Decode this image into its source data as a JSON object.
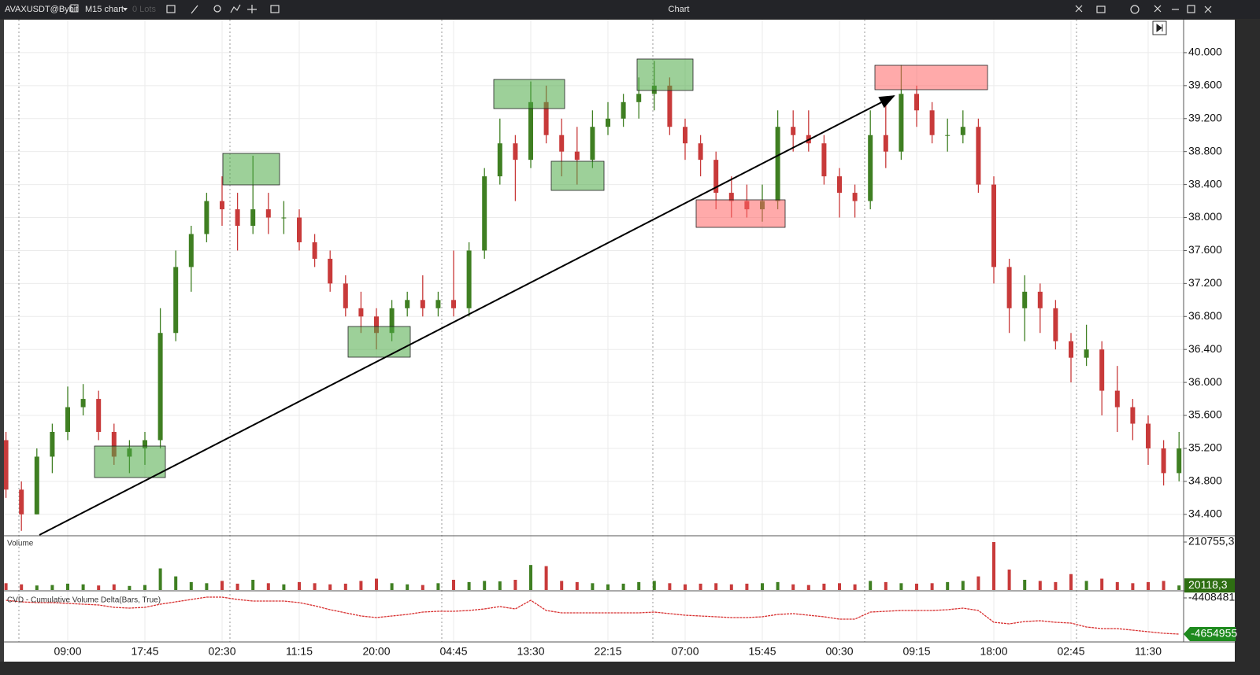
{
  "toolbar": {
    "symbol": "AVAXUSDT@Bybit",
    "timeframe": "M15 chart",
    "lots": "0 Lots",
    "window_title": "Chart"
  },
  "chart_data": [
    {
      "type": "candlestick",
      "categories": [
        null,
        null,
        null,
        null,
        "09:00",
        null,
        null,
        null,
        null,
        "17:45",
        null,
        null,
        null,
        null,
        "02:30",
        null,
        null,
        null,
        null,
        "11:15",
        null,
        null,
        null,
        null,
        "20:00",
        null,
        null,
        null,
        null,
        "04:45",
        null,
        null,
        null,
        null,
        "13:30",
        null,
        null,
        null,
        null,
        "22:15",
        null,
        null,
        null,
        null,
        "07:00",
        null,
        null,
        null,
        null,
        "15:45",
        null,
        null,
        null,
        null,
        "00:30",
        null,
        null,
        null,
        null,
        "09:15",
        null,
        null,
        null,
        null,
        "18:00",
        null,
        null,
        null,
        null,
        "02:45",
        null,
        null,
        null,
        null,
        "11:30",
        null,
        null
      ],
      "open": [
        35.3,
        34.7,
        34.4,
        35.1,
        35.4,
        35.7,
        35.8,
        35.4,
        35.1,
        35.2,
        35.3,
        36.6,
        37.4,
        37.8,
        38.2,
        38.1,
        37.9,
        38.1,
        38.0,
        38.0,
        37.7,
        37.5,
        37.2,
        36.9,
        36.8,
        36.6,
        36.9,
        37.0,
        36.9,
        37.0,
        36.9,
        37.6,
        38.5,
        38.9,
        38.7,
        39.4,
        39.0,
        38.8,
        38.7,
        39.1,
        39.2,
        39.4,
        39.5,
        39.6,
        39.1,
        38.9,
        38.7,
        38.3,
        38.2,
        38.1,
        38.2,
        39.1,
        39.0,
        38.9,
        38.5,
        38.3,
        38.2,
        39.0,
        38.8,
        39.5,
        39.3,
        39.0,
        39.0,
        39.1,
        38.4,
        37.4,
        36.9,
        37.1,
        36.9,
        36.5,
        36.3,
        36.4,
        35.9,
        35.7,
        35.5,
        35.2,
        34.9
      ],
      "high": [
        35.4,
        34.8,
        35.2,
        35.5,
        35.95,
        35.98,
        35.9,
        35.5,
        35.3,
        35.4,
        36.9,
        37.6,
        37.9,
        38.3,
        38.5,
        38.3,
        38.75,
        38.3,
        38.2,
        38.1,
        37.8,
        37.6,
        37.3,
        37.1,
        36.9,
        37.0,
        37.1,
        37.3,
        37.1,
        37.6,
        37.7,
        38.6,
        39.2,
        39.0,
        39.65,
        39.6,
        39.2,
        39.1,
        39.3,
        39.4,
        39.5,
        39.7,
        39.9,
        39.7,
        39.2,
        39.0,
        38.8,
        38.5,
        38.4,
        38.4,
        39.3,
        39.3,
        39.3,
        39.0,
        38.6,
        38.4,
        39.3,
        39.4,
        39.85,
        39.6,
        39.4,
        39.2,
        39.3,
        39.2,
        38.5,
        37.5,
        37.3,
        37.2,
        37.0,
        36.6,
        36.7,
        36.5,
        36.2,
        35.8,
        35.6,
        35.3,
        35.4
      ],
      "low": [
        34.6,
        34.2,
        34.4,
        34.9,
        35.3,
        35.6,
        35.3,
        35.0,
        34.9,
        35.0,
        35.2,
        36.5,
        37.1,
        37.7,
        37.9,
        37.6,
        37.8,
        37.8,
        37.8,
        37.6,
        37.4,
        37.1,
        36.8,
        36.6,
        36.4,
        36.5,
        36.8,
        36.8,
        36.8,
        36.8,
        36.8,
        37.5,
        38.4,
        38.2,
        38.6,
        38.9,
        38.5,
        38.4,
        38.6,
        39.0,
        39.1,
        39.2,
        39.3,
        39.0,
        38.7,
        38.5,
        38.1,
        38.0,
        38.0,
        37.95,
        38.1,
        38.8,
        38.8,
        38.4,
        38.0,
        38.0,
        38.1,
        38.6,
        38.7,
        39.1,
        38.9,
        38.8,
        38.9,
        38.3,
        37.2,
        36.6,
        36.5,
        36.6,
        36.4,
        36.0,
        36.2,
        35.6,
        35.4,
        35.3,
        35.0,
        34.75,
        34.8
      ],
      "close": [
        34.7,
        34.4,
        35.1,
        35.4,
        35.7,
        35.8,
        35.4,
        35.1,
        35.2,
        35.3,
        36.6,
        37.4,
        37.8,
        38.2,
        38.1,
        37.9,
        38.1,
        38.0,
        38.0,
        37.7,
        37.5,
        37.2,
        36.9,
        36.8,
        36.6,
        36.9,
        37.0,
        36.9,
        37.0,
        36.9,
        37.6,
        38.5,
        38.9,
        38.7,
        39.4,
        39.0,
        38.8,
        38.7,
        39.1,
        39.2,
        39.4,
        39.5,
        39.6,
        39.1,
        38.9,
        38.7,
        38.3,
        38.2,
        38.1,
        38.2,
        39.1,
        39.0,
        38.9,
        38.5,
        38.3,
        38.2,
        39.0,
        38.8,
        39.5,
        39.3,
        39.0,
        39.0,
        39.1,
        38.4,
        37.4,
        36.9,
        37.1,
        36.9,
        36.5,
        36.3,
        36.4,
        35.9,
        35.7,
        35.5,
        35.2,
        34.9,
        35.2
      ],
      "up_color": "#3f7f22",
      "down_color": "#c83a3a",
      "ylim": [
        34.15,
        40.4
      ],
      "yticks": [
        {
          "value": 34.4,
          "label": "34.400"
        },
        {
          "value": 34.8,
          "label": "34.800"
        },
        {
          "value": 35.2,
          "label": "35.200"
        },
        {
          "value": 35.6,
          "label": "35.600"
        },
        {
          "value": 36.0,
          "label": "36.000"
        },
        {
          "value": 36.4,
          "label": "36.400"
        },
        {
          "value": 36.8,
          "label": "36.800"
        },
        {
          "value": 37.2,
          "label": "37.200"
        },
        {
          "value": 37.6,
          "label": "37.600"
        },
        {
          "value": 38.0,
          "label": "38.000"
        },
        {
          "value": 38.4,
          "label": "38.400"
        },
        {
          "value": 38.8,
          "label": "38.800"
        },
        {
          "value": 39.2,
          "label": "39.200"
        },
        {
          "value": 39.6,
          "label": "39.600"
        },
        {
          "value": 40.0,
          "label": "40.000"
        }
      ],
      "grid": true
    },
    {
      "type": "bar",
      "title": "Volume",
      "values": [
        30000,
        25000,
        20000,
        22000,
        28000,
        25000,
        20000,
        25000,
        18000,
        22000,
        95000,
        60000,
        35000,
        30000,
        40000,
        28000,
        45000,
        30000,
        25000,
        35000,
        30000,
        25000,
        28000,
        40000,
        50000,
        30000,
        25000,
        22000,
        30000,
        45000,
        35000,
        40000,
        38000,
        45000,
        110000,
        105000,
        40000,
        35000,
        30000,
        25000,
        28000,
        35000,
        40000,
        30000,
        25000,
        28000,
        30000,
        25000,
        28000,
        30000,
        35000,
        25000,
        22000,
        28000,
        30000,
        25000,
        40000,
        35000,
        30000,
        28000,
        30000,
        35000,
        40000,
        60000,
        210755.3,
        90000,
        45000,
        40000,
        35000,
        70000,
        40000,
        50000,
        35000,
        30000,
        35000,
        40000,
        20118.3
      ],
      "ylim": [
        0,
        235000
      ],
      "yticks": [
        {
          "value": 210755.3,
          "label": "210755,3"
        }
      ],
      "last_value": {
        "value": 20118.3,
        "label": "20118,3"
      },
      "badge_color": "#2e6e12"
    },
    {
      "type": "line",
      "title": "CVD - Cumulative Volume Delta(Bars, True)",
      "values": [
        -4424580,
        -4435300,
        -4440660,
        -4440660,
        -4446020,
        -4451380,
        -4456740,
        -4472820,
        -4478180,
        -4472820,
        -4451380,
        -4435300,
        -4419220,
        -4403140,
        -4403140,
        -4419220,
        -4429940,
        -4429940,
        -4429940,
        -4440660,
        -4462100,
        -4488900,
        -4510340,
        -4531780,
        -4542500,
        -4531780,
        -4521060,
        -4504980,
        -4499620,
        -4499620,
        -4494260,
        -4483540,
        -4467460,
        -4483540,
        -4424580,
        -4494260,
        -4510340,
        -4510340,
        -4510340,
        -4510340,
        -4510340,
        -4510340,
        -4504980,
        -4515700,
        -4526420,
        -4531780,
        -4537140,
        -4542500,
        -4542500,
        -4537140,
        -4521060,
        -4515700,
        -4526420,
        -4537140,
        -4553220,
        -4553220,
        -4504980,
        -4499620,
        -4494260,
        -4494260,
        -4494260,
        -4488900,
        -4478180,
        -4494260,
        -4574660,
        -4585380,
        -4569300,
        -4563940,
        -4574660,
        -4580020,
        -4606820,
        -4617540,
        -4617540,
        -4628260,
        -4638980,
        -4649700,
        -4654955
      ],
      "color": "#d83030",
      "ylim": [
        -4708500,
        -4365600
      ],
      "yticks": [
        -4408481
      ],
      "badge_color": "#1e8a1e"
    }
  ]
}
